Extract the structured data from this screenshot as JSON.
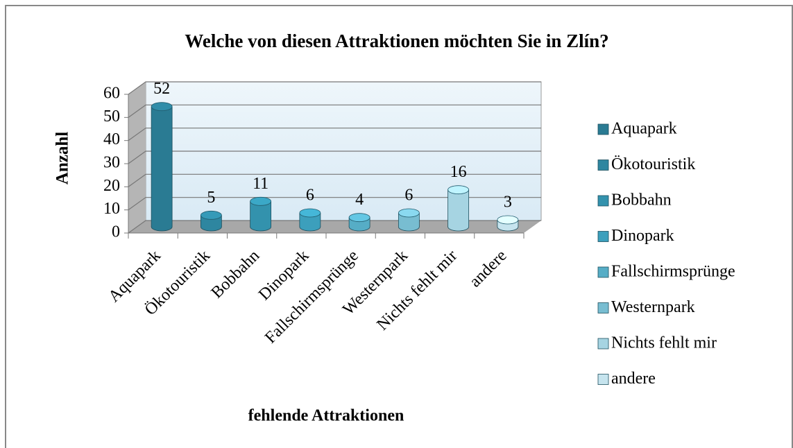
{
  "chart_data": {
    "type": "bar3d",
    "title": "Welche von diesen Attraktionen möchten Sie in Zlín?",
    "ylabel": "Anzahl",
    "xlabel": "fehlende Attraktionen",
    "categories": [
      "Aquapark",
      "Ökotouristik",
      "Bobbahn",
      "Dinopark",
      "Fallschirmsprünge",
      "Westernpark",
      "Nichts fehlt mir",
      "andere"
    ],
    "values": [
      52,
      5,
      11,
      6,
      4,
      6,
      16,
      3
    ],
    "colors": [
      "#2a7b93",
      "#2e86a0",
      "#3392ad",
      "#3c9fbc",
      "#56adc6",
      "#78bdd1",
      "#a6d4e2",
      "#c6e4ee"
    ],
    "ylim": [
      0,
      60
    ],
    "yticks": [
      0,
      10,
      20,
      30,
      40,
      50,
      60
    ],
    "grid": true,
    "legend": "right"
  }
}
